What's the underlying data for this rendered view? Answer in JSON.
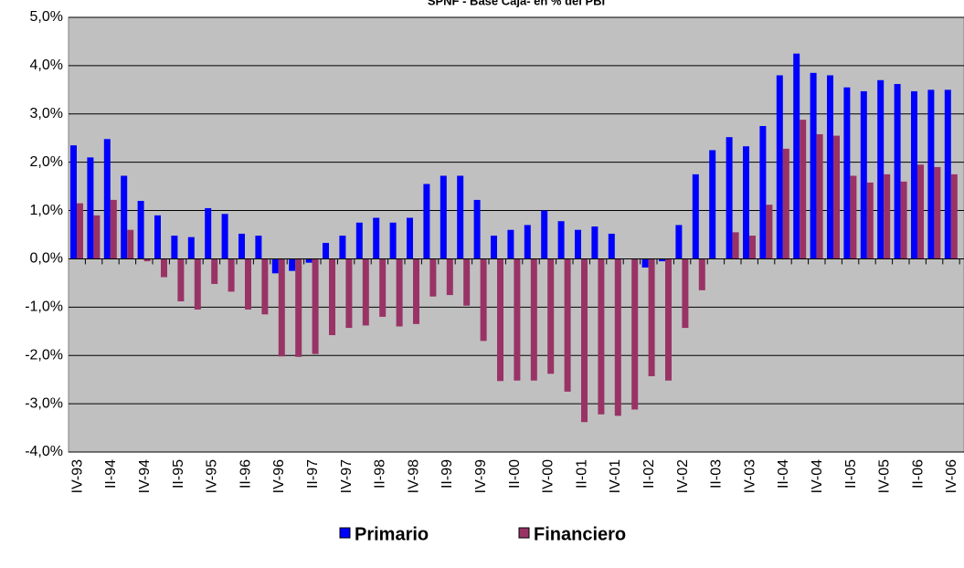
{
  "chart_data": {
    "type": "bar",
    "title": "SPNF - Base Caja- en % del PBI",
    "categories": [
      "IV-93",
      null,
      "II-94",
      null,
      "IV-94",
      null,
      "II-95",
      null,
      "IV-95",
      null,
      "II-96",
      null,
      "IV-96",
      null,
      "II-97",
      null,
      "IV-97",
      null,
      "II-98",
      null,
      "IV-98",
      null,
      "II-99",
      null,
      "IV-99",
      null,
      "II-00",
      null,
      "IV-00",
      null,
      "II-01",
      null,
      "IV-01",
      null,
      "II-02",
      null,
      "IV-02",
      null,
      "II-03",
      null,
      "IV-03",
      null,
      "II-04",
      null,
      "IV-04",
      null,
      "II-05",
      null,
      "IV-05",
      null,
      "II-06",
      null,
      "IV-06"
    ],
    "series": [
      {
        "name": "Primario",
        "color": "#0000ff",
        "values": [
          2.35,
          2.1,
          2.48,
          1.72,
          1.2,
          0.9,
          0.48,
          0.45,
          1.05,
          0.93,
          0.52,
          0.48,
          -0.3,
          -0.25,
          -0.08,
          0.33,
          0.48,
          0.75,
          0.85,
          0.75,
          0.85,
          1.55,
          1.72,
          1.72,
          1.22,
          0.48,
          0.6,
          0.7,
          1.0,
          0.78,
          0.6,
          0.67,
          0.52,
          0.0,
          -0.18,
          -0.05,
          0.7,
          1.75,
          2.25,
          2.52,
          2.33,
          2.75,
          3.8,
          4.25,
          3.85,
          3.8,
          3.55,
          3.47,
          3.7,
          3.62,
          3.47,
          3.5,
          3.5
        ]
      },
      {
        "name": "Financiero",
        "color": "#993366",
        "values": [
          1.15,
          0.9,
          1.22,
          0.6,
          -0.05,
          -0.38,
          -0.88,
          -1.05,
          -0.52,
          -0.68,
          -1.05,
          -1.15,
          -2.02,
          -2.03,
          -1.97,
          -1.58,
          -1.43,
          -1.38,
          -1.2,
          -1.4,
          -1.35,
          -0.78,
          -0.75,
          -0.97,
          -1.7,
          -2.53,
          -2.52,
          -2.52,
          -2.38,
          -2.75,
          -3.38,
          -3.22,
          -3.25,
          -3.12,
          -2.43,
          -2.52,
          -1.43,
          -0.65,
          0.0,
          0.55,
          0.48,
          1.12,
          2.28,
          2.88,
          2.58,
          2.55,
          1.72,
          1.58,
          1.75,
          1.6,
          1.95,
          1.9,
          1.75
        ]
      }
    ],
    "ylim": [
      -4,
      5
    ],
    "yticks": [
      {
        "value": -4,
        "label": "-4,0%"
      },
      {
        "value": -3,
        "label": "-3,0%"
      },
      {
        "value": -2,
        "label": "-2,0%"
      },
      {
        "value": -1,
        "label": "-1,0%"
      },
      {
        "value": 0,
        "label": "0,0%"
      },
      {
        "value": 1,
        "label": "1,0%"
      },
      {
        "value": 2,
        "label": "2,0%"
      },
      {
        "value": 3,
        "label": "3,0%"
      },
      {
        "value": 4,
        "label": "4,0%"
      },
      {
        "value": 5,
        "label": "5,0%"
      }
    ],
    "grid": true,
    "plot_background": "#c0c0c0"
  }
}
